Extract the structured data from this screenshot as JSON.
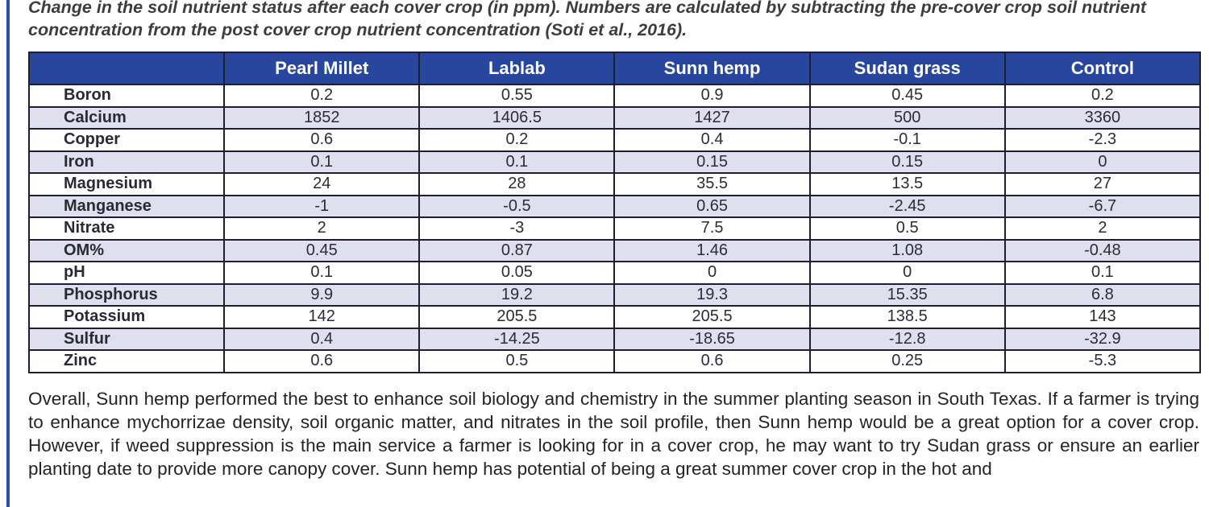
{
  "caption": "Change in the soil nutrient status after each cover crop (in ppm). Numbers are calculated by subtracting the pre-cover crop soil nutrient concentration from the post cover crop nutrient concentration (Soti et al., 2016).",
  "table": {
    "columns": [
      "",
      "Pearl Millet",
      "Lablab",
      "Sunn hemp",
      "Sudan grass",
      "Control"
    ],
    "rows": [
      {
        "label": "Boron",
        "values": [
          "0.2",
          "0.55",
          "0.9",
          "0.45",
          "0.2"
        ]
      },
      {
        "label": "Calcium",
        "values": [
          "1852",
          "1406.5",
          "1427",
          "500",
          "3360"
        ]
      },
      {
        "label": "Copper",
        "values": [
          "0.6",
          "0.2",
          "0.4",
          "-0.1",
          "-2.3"
        ]
      },
      {
        "label": "Iron",
        "values": [
          "0.1",
          "0.1",
          "0.15",
          "0.15",
          "0"
        ]
      },
      {
        "label": "Magnesium",
        "values": [
          "24",
          "28",
          "35.5",
          "13.5",
          "27"
        ]
      },
      {
        "label": "Manganese",
        "values": [
          "-1",
          "-0.5",
          "0.65",
          "-2.45",
          "-6.7"
        ]
      },
      {
        "label": "Nitrate",
        "values": [
          "2",
          "-3",
          "7.5",
          "0.5",
          "2"
        ]
      },
      {
        "label": "OM%",
        "values": [
          "0.45",
          "0.87",
          "1.46",
          "1.08",
          "-0.48"
        ]
      },
      {
        "label": "pH",
        "values": [
          "0.1",
          "0.05",
          "0",
          "0",
          "0.1"
        ]
      },
      {
        "label": "Phosphorus",
        "values": [
          "9.9",
          "19.2",
          "19.3",
          "15.35",
          "6.8"
        ]
      },
      {
        "label": "Potassium",
        "values": [
          "142",
          "205.5",
          "205.5",
          "138.5",
          "143"
        ]
      },
      {
        "label": "Sulfur",
        "values": [
          "0.4",
          "-14.25",
          "-18.65",
          "-12.8",
          "-32.9"
        ]
      },
      {
        "label": "Zinc",
        "values": [
          "0.6",
          "0.5",
          "0.6",
          "0.25",
          "-5.3"
        ]
      }
    ]
  },
  "paragraph": "Overall, Sunn hemp performed the best to enhance soil biology and chemistry in the summer planting season in South Texas. If a farmer is trying to enhance mychorrizae density, soil organic matter, and nitrates in the soil profile, then Sunn hemp would be a great option for a cover crop. However, if weed suppression is the main service a farmer is looking for in a cover crop, he may want to try Sudan grass or ensure an earlier planting date to provide more canopy cover. Sunn hemp has potential of being a great summer cover crop in the hot and",
  "colors": {
    "header_blue": "#27479E",
    "alt_row_lavender": "#E0DFEE",
    "table_border": "#1e1e32",
    "accent_bar_blue": "#2B4EA2"
  }
}
